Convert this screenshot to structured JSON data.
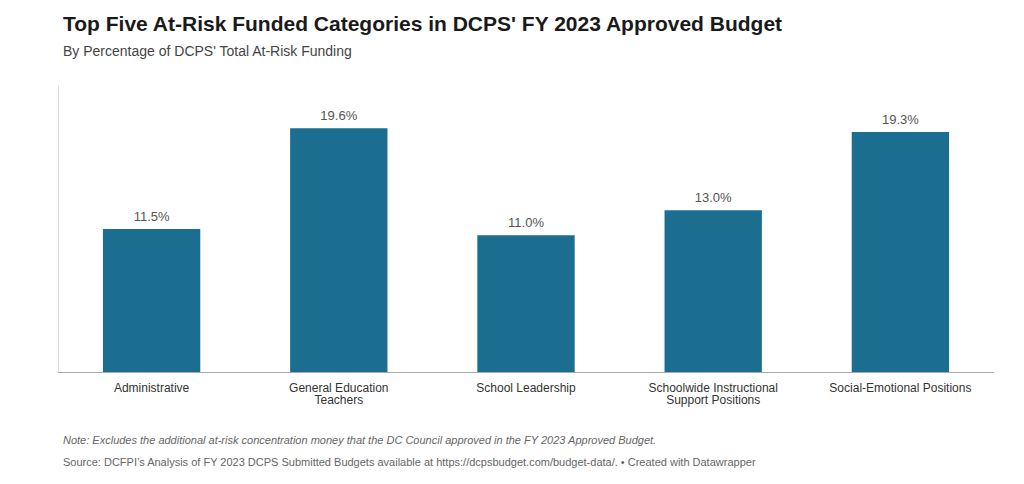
{
  "chart_data": {
    "type": "bar",
    "title": "Top Five At-Risk Funded Categories in DCPS' FY 2023 Approved Budget",
    "subtitle": "By Percentage of DCPS' Total At-Risk Funding",
    "categories": [
      "Administrative",
      "General Education\nTeachers",
      "School Leadership",
      "Schoolwide Instructional\nSupport Positions",
      "Social-Emotional Positions"
    ],
    "values": [
      11.5,
      19.6,
      11.0,
      13.0,
      19.3
    ],
    "value_labels": [
      "11.5%",
      "19.6%",
      "11.0%",
      "13.0%",
      "19.3%"
    ],
    "data_labels": true,
    "color": "#1b6e8f",
    "ylim": [
      0,
      23
    ],
    "tick_labels": "x",
    "grid": false,
    "note": "Note: Excludes the additional at-risk concentration money that the DC Council approved in the FY 2023 Approved Budget.",
    "source": "Source: DCFPI’s Analysis of FY 2023 DCPS Submitted Budgets available at https://dcpsbudget.com/budget-data/. • Created with Datawrapper"
  }
}
